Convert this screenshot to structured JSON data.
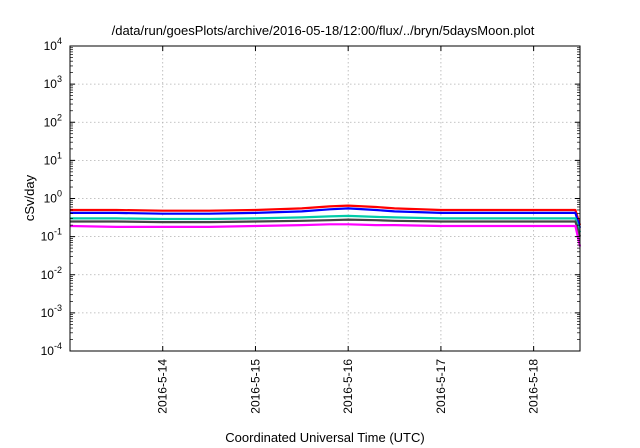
{
  "chart_data": {
    "type": "line",
    "title": "/data/run/goesPlots/archive/2016-05-18/12:00/flux/../bryn/5daysMoon.plot",
    "xlabel": "Coordinated Universal Time (UTC)",
    "ylabel": "cSv/day",
    "yscale": "log",
    "ylim": [
      0.0001,
      10000
    ],
    "xlim": [
      13.0,
      18.5
    ],
    "grid": true,
    "x_ticks": [
      {
        "value": 14,
        "label": "2016-5-14"
      },
      {
        "value": 15,
        "label": "2016-5-15"
      },
      {
        "value": 16,
        "label": "2016-5-16"
      },
      {
        "value": 17,
        "label": "2016-5-17"
      },
      {
        "value": 18,
        "label": "2016-5-18"
      }
    ],
    "y_ticks": [
      {
        "value": 0.0001,
        "base": "10",
        "exp": "-4"
      },
      {
        "value": 0.001,
        "base": "10",
        "exp": "-3"
      },
      {
        "value": 0.01,
        "base": "10",
        "exp": "-2"
      },
      {
        "value": 0.1,
        "base": "10",
        "exp": "-1"
      },
      {
        "value": 1,
        "base": "10",
        "exp": "0"
      },
      {
        "value": 10,
        "base": "10",
        "exp": "1"
      },
      {
        "value": 100,
        "base": "10",
        "exp": "2"
      },
      {
        "value": 1000,
        "base": "10",
        "exp": "3"
      },
      {
        "value": 10000,
        "base": "10",
        "exp": "4"
      }
    ],
    "series": [
      {
        "color": "#ff0000",
        "x": [
          13.0,
          13.5,
          14.0,
          14.5,
          15.0,
          15.5,
          15.8,
          16.0,
          16.3,
          16.5,
          17.0,
          17.5,
          18.0,
          18.45,
          18.5
        ],
        "values": [
          0.5,
          0.5,
          0.48,
          0.48,
          0.5,
          0.55,
          0.62,
          0.65,
          0.6,
          0.55,
          0.5,
          0.5,
          0.5,
          0.5,
          0.2
        ]
      },
      {
        "color": "#0000ff",
        "x": [
          13.0,
          13.5,
          14.0,
          14.5,
          15.0,
          15.5,
          15.8,
          16.0,
          16.3,
          16.5,
          17.0,
          17.5,
          18.0,
          18.45,
          18.5
        ],
        "values": [
          0.42,
          0.42,
          0.4,
          0.4,
          0.42,
          0.46,
          0.52,
          0.55,
          0.5,
          0.46,
          0.42,
          0.42,
          0.42,
          0.42,
          0.17
        ]
      },
      {
        "color": "#00ccaa",
        "x": [
          13.0,
          13.5,
          14.0,
          14.5,
          15.0,
          15.5,
          15.8,
          16.0,
          16.3,
          16.5,
          17.0,
          17.5,
          18.0,
          18.45,
          18.5
        ],
        "values": [
          0.3,
          0.3,
          0.29,
          0.29,
          0.3,
          0.32,
          0.34,
          0.35,
          0.33,
          0.32,
          0.3,
          0.3,
          0.3,
          0.3,
          0.13
        ]
      },
      {
        "color": "#444444",
        "x": [
          13.0,
          13.5,
          14.0,
          14.5,
          15.0,
          15.5,
          15.8,
          16.0,
          16.3,
          16.5,
          17.0,
          17.5,
          18.0,
          18.45,
          18.5
        ],
        "values": [
          0.25,
          0.25,
          0.24,
          0.24,
          0.25,
          0.26,
          0.27,
          0.28,
          0.27,
          0.26,
          0.25,
          0.25,
          0.25,
          0.25,
          0.1
        ]
      },
      {
        "color": "#ff00ff",
        "x": [
          13.0,
          13.5,
          14.0,
          14.5,
          15.0,
          15.5,
          15.8,
          16.0,
          16.3,
          16.5,
          17.0,
          17.5,
          18.0,
          18.45,
          18.5
        ],
        "values": [
          0.19,
          0.18,
          0.18,
          0.18,
          0.19,
          0.2,
          0.21,
          0.21,
          0.2,
          0.2,
          0.19,
          0.19,
          0.19,
          0.19,
          0.055
        ]
      }
    ]
  }
}
